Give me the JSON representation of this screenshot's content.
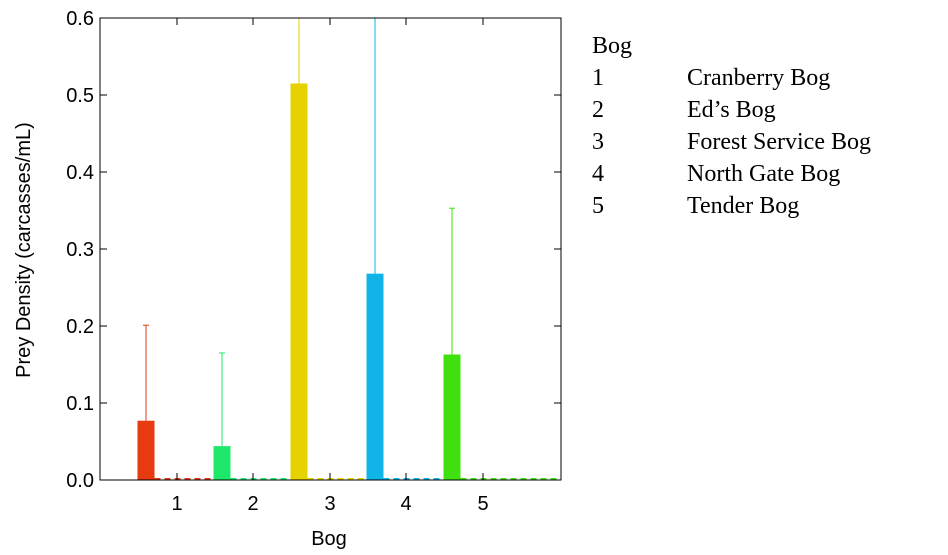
{
  "chart_data": {
    "type": "bar",
    "title": "",
    "xlabel": "Bog",
    "ylabel": "Prey Density (carcasses/mL)",
    "categories": [
      "1",
      "2",
      "3",
      "4",
      "5"
    ],
    "values": [
      0.077,
      0.044,
      0.515,
      0.268,
      0.163
    ],
    "error_upper": [
      0.201,
      0.165,
      0.6,
      0.6,
      0.353
    ],
    "colors": [
      "#e63a10",
      "#1ee86a",
      "#e6d200",
      "#10b4e6",
      "#40e010"
    ],
    "ylim": [
      0,
      0.6
    ],
    "yticks": [
      "0.0",
      "0.1",
      "0.2",
      "0.3",
      "0.4",
      "0.5",
      "0.6"
    ],
    "grid": false
  },
  "legend": {
    "title": "Bog",
    "items": [
      {
        "num": "1",
        "label": "Cranberry Bog"
      },
      {
        "num": "2",
        "label": "Ed’s Bog"
      },
      {
        "num": "3",
        "label": "Forest Service Bog"
      },
      {
        "num": "4",
        "label": "North Gate Bog"
      },
      {
        "num": "5",
        "label": "Tender Bog"
      }
    ]
  }
}
